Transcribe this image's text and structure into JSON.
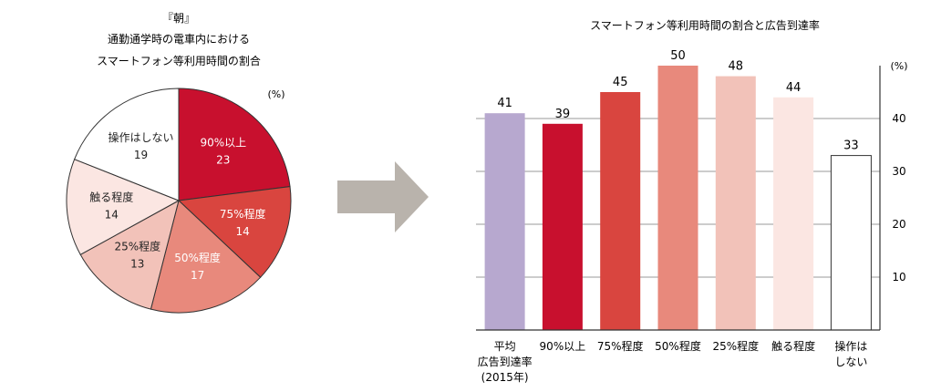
{
  "chart_data": [
    {
      "type": "pie",
      "title_lines": [
        "『朝』",
        "通勤通学時の電車内における",
        "スマートフォン等利用時間の割合"
      ],
      "unit": "(%)",
      "slices": [
        {
          "label": "90%以上",
          "value": 23,
          "color": "#c8102e",
          "text_color": "#ffffff"
        },
        {
          "label": "75%程度",
          "value": 14,
          "color": "#d9453f",
          "text_color": "#ffffff"
        },
        {
          "label": "50%程度",
          "value": 17,
          "color": "#e8897c",
          "text_color": "#ffffff"
        },
        {
          "label": "25%程度",
          "value": 13,
          "color": "#f2c2b9",
          "text_color": "#222222"
        },
        {
          "label": "触る程度",
          "value": 14,
          "color": "#fbe6e2",
          "text_color": "#222222"
        },
        {
          "label": "操作はしない",
          "value": 19,
          "color": "#ffffff",
          "text_color": "#222222"
        }
      ]
    },
    {
      "type": "bar",
      "title": "スマートフォン等利用時間の割合と広告到達率",
      "unit": "(%)",
      "categories": [
        [
          "平均",
          "広告到達率",
          "(2015年)"
        ],
        [
          "90%以上"
        ],
        [
          "75%程度"
        ],
        [
          "50%程度"
        ],
        [
          "25%程度"
        ],
        [
          "触る程度"
        ],
        [
          "操作は",
          "しない"
        ]
      ],
      "values": [
        41,
        39,
        45,
        50,
        48,
        44,
        33
      ],
      "colors": [
        "#b7a8cf",
        "#c8102e",
        "#d9453f",
        "#e8897c",
        "#f2c2b9",
        "#fbe6e2",
        "#ffffff"
      ],
      "ylim": [
        0,
        50
      ],
      "yticks": [
        10,
        20,
        30,
        40
      ],
      "grid": true,
      "axis_side": "right"
    }
  ],
  "arrow": {
    "color": "#b9b3ac"
  }
}
